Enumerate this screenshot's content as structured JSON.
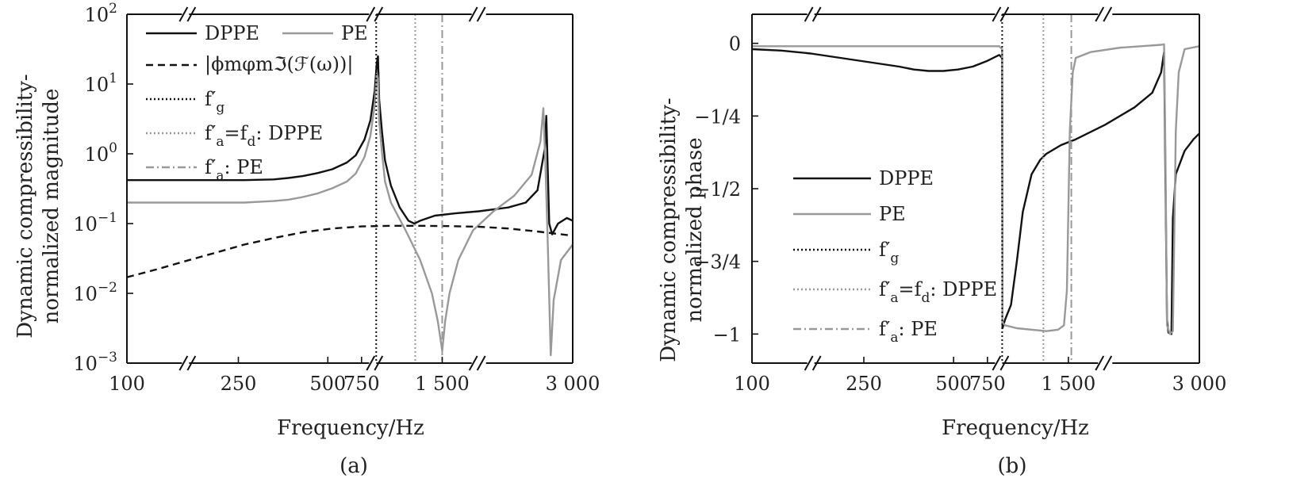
{
  "chart_data": [
    {
      "panel": "(a)",
      "type": "line",
      "xlabel": "Frequency/Hz",
      "ylabel_line1": "Dynamic compressibility-",
      "ylabel_line2": "normalized magnitude",
      "y_scale": "log",
      "ylim": [
        0.001,
        100
      ],
      "x_axis": "broken",
      "x_tick_labels": [
        "100",
        "250",
        "500",
        "750",
        "1 500",
        "3 000"
      ],
      "y_tick_labels": [
        {
          "base": "10",
          "exp": "2"
        },
        {
          "base": "10",
          "exp": "1"
        },
        {
          "base": "10",
          "exp": "0"
        },
        {
          "base": "10",
          "exp": "-1"
        },
        {
          "base": "10",
          "exp": "-2"
        },
        {
          "base": "10",
          "exp": "-3"
        }
      ],
      "legend": [
        {
          "label": "DPPE",
          "style": "solid-black"
        },
        {
          "label": "PE",
          "style": "solid-gray"
        },
        {
          "label": "|ϕmφmℑ(ℱ(ω))|",
          "style": "dashed-black"
        },
        {
          "label": "f′g",
          "style": "dotted-black"
        },
        {
          "label": "f′a = fd: DPPE",
          "style": "dotted-gray"
        },
        {
          "label": "f′a: PE",
          "style": "dashdot-gray"
        }
      ],
      "legend_text": {
        "dppe": "DPPE",
        "pe": "PE",
        "phi_abs": "|ϕmφmℑ(ℱ(ω))|",
        "fg_main": "f′",
        "fg_sub": "g",
        "fa_dppe_main": "f′",
        "fa_dppe_sub": "a",
        "fa_dppe_eq": "=",
        "fa_dppe_fd": "f",
        "fa_dppe_fd_sub": "d",
        "fa_dppe_rest": ": DPPE",
        "fa_pe_main": "f′",
        "fa_pe_sub": "a",
        "fa_pe_rest": ": PE"
      },
      "legend_position": "upper-left",
      "caption": "(a)",
      "series": [
        {
          "name": "DPPE",
          "color": "#111111",
          "style": "solid",
          "points": [
            [
              0,
              0.42
            ],
            [
              0.1,
              0.42
            ],
            [
              0.2,
              0.42
            ],
            [
              0.3,
              0.42
            ],
            [
              0.4,
              0.42
            ],
            [
              0.5,
              0.43
            ],
            [
              0.55,
              0.45
            ],
            [
              0.6,
              0.48
            ],
            [
              0.65,
              0.53
            ],
            [
              0.7,
              0.6
            ],
            [
              0.75,
              0.75
            ],
            [
              0.78,
              0.95
            ],
            [
              0.81,
              1.6
            ],
            [
              0.83,
              3
            ],
            [
              0.845,
              8
            ],
            [
              0.852,
              20
            ],
            [
              0.856,
              25
            ],
            [
              0.86,
              6
            ],
            [
              0.87,
              2
            ],
            [
              0.88,
              0.8
            ],
            [
              0.9,
              0.35
            ],
            [
              0.93,
              0.17
            ],
            [
              0.96,
              0.11
            ],
            [
              0.98,
              0.1
            ],
            [
              1.0,
              0.11
            ],
            [
              1.05,
              0.13
            ],
            [
              1.12,
              0.14
            ],
            [
              1.2,
              0.15
            ],
            [
              1.3,
              0.17
            ],
            [
              1.36,
              0.2
            ],
            [
              1.4,
              0.3
            ],
            [
              1.425,
              1.2
            ],
            [
              1.43,
              3.5
            ],
            [
              1.44,
              0.1
            ],
            [
              1.45,
              0.07
            ],
            [
              1.47,
              0.1
            ],
            [
              1.5,
              0.12
            ],
            [
              1.52,
              0.11
            ]
          ]
        },
        {
          "name": "PE",
          "color": "#999999",
          "style": "solid",
          "points": [
            [
              0,
              0.2
            ],
            [
              0.1,
              0.2
            ],
            [
              0.2,
              0.2
            ],
            [
              0.3,
              0.2
            ],
            [
              0.4,
              0.2
            ],
            [
              0.5,
              0.21
            ],
            [
              0.55,
              0.22
            ],
            [
              0.6,
              0.24
            ],
            [
              0.65,
              0.27
            ],
            [
              0.7,
              0.32
            ],
            [
              0.75,
              0.4
            ],
            [
              0.78,
              0.52
            ],
            [
              0.81,
              0.9
            ],
            [
              0.83,
              1.8
            ],
            [
              0.845,
              5
            ],
            [
              0.852,
              14
            ],
            [
              0.856,
              12
            ],
            [
              0.86,
              3
            ],
            [
              0.87,
              1
            ],
            [
              0.88,
              0.4
            ],
            [
              0.9,
              0.2
            ],
            [
              0.95,
              0.08
            ],
            [
              1.0,
              0.03
            ],
            [
              1.04,
              0.01
            ],
            [
              1.06,
              0.004
            ],
            [
              1.075,
              0.0015
            ],
            [
              1.085,
              0.004
            ],
            [
              1.1,
              0.01
            ],
            [
              1.13,
              0.03
            ],
            [
              1.18,
              0.08
            ],
            [
              1.25,
              0.15
            ],
            [
              1.32,
              0.25
            ],
            [
              1.38,
              0.5
            ],
            [
              1.41,
              1.5
            ],
            [
              1.42,
              4.5
            ],
            [
              1.428,
              0.5
            ],
            [
              1.435,
              0.05
            ],
            [
              1.445,
              0.0013
            ],
            [
              1.455,
              0.008
            ],
            [
              1.48,
              0.03
            ],
            [
              1.52,
              0.05
            ]
          ]
        },
        {
          "name": "|ϕmφmℑ(ℱ(ω))|",
          "color": "#111111",
          "style": "dashed",
          "points": [
            [
              0,
              0.017
            ],
            [
              0.1,
              0.022
            ],
            [
              0.2,
              0.029
            ],
            [
              0.3,
              0.038
            ],
            [
              0.4,
              0.05
            ],
            [
              0.5,
              0.062
            ],
            [
              0.6,
              0.075
            ],
            [
              0.7,
              0.085
            ],
            [
              0.8,
              0.091
            ],
            [
              0.9,
              0.093
            ],
            [
              1.0,
              0.093
            ],
            [
              1.1,
              0.092
            ],
            [
              1.2,
              0.09
            ],
            [
              1.3,
              0.085
            ],
            [
              1.4,
              0.077
            ],
            [
              1.52,
              0.067
            ]
          ]
        }
      ]
    },
    {
      "panel": "(b)",
      "type": "line",
      "xlabel": "Frequency/Hz",
      "ylabel_line1": "Dynamic compressibility-",
      "ylabel_line2": "normalized phase",
      "ylim": [
        -1.1,
        0.1
      ],
      "x_axis": "broken",
      "x_tick_labels": [
        "100",
        "250",
        "500",
        "750",
        "1 500",
        "3 000"
      ],
      "y_tick_labels": [
        "0",
        "−1/4",
        "−1/2",
        "−3/4",
        "−1"
      ],
      "y_tick_values": [
        0,
        -0.25,
        -0.5,
        -0.75,
        -1
      ],
      "legend": [
        {
          "label": "DPPE",
          "style": "solid-black"
        },
        {
          "label": "PE",
          "style": "solid-gray"
        },
        {
          "label": "f′g",
          "style": "dotted-black"
        },
        {
          "label": "f′a = fd: DPPE",
          "style": "dotted-gray"
        },
        {
          "label": "f′a: PE",
          "style": "dashdot-gray"
        }
      ],
      "legend_text": {
        "dppe": "DPPE",
        "pe": "PE",
        "fg_main": "f′",
        "fg_sub": "g",
        "fa_dppe_main": "f′",
        "fa_dppe_sub": "a",
        "fa_dppe_eq": "=",
        "fa_dppe_fd": "f",
        "fa_dppe_fd_sub": "d",
        "fa_dppe_rest": ": DPPE",
        "fa_pe_main": "f′",
        "fa_pe_sub": "a",
        "fa_pe_rest": ": PE"
      },
      "legend_position": "center-left",
      "caption": "(b)",
      "series": [
        {
          "name": "DPPE",
          "color": "#111111",
          "style": "solid",
          "points": [
            [
              0,
              -0.02
            ],
            [
              0.1,
              -0.025
            ],
            [
              0.2,
              -0.035
            ],
            [
              0.3,
              -0.05
            ],
            [
              0.4,
              -0.065
            ],
            [
              0.5,
              -0.08
            ],
            [
              0.55,
              -0.09
            ],
            [
              0.6,
              -0.095
            ],
            [
              0.65,
              -0.095
            ],
            [
              0.7,
              -0.09
            ],
            [
              0.75,
              -0.08
            ],
            [
              0.8,
              -0.06
            ],
            [
              0.84,
              -0.04
            ],
            [
              0.85,
              -0.05
            ],
            [
              0.851,
              -0.98
            ],
            [
              0.86,
              -0.95
            ],
            [
              0.88,
              -0.9
            ],
            [
              0.9,
              -0.75
            ],
            [
              0.92,
              -0.58
            ],
            [
              0.95,
              -0.45
            ],
            [
              0.98,
              -0.4
            ],
            [
              1.0,
              -0.38
            ],
            [
              1.05,
              -0.35
            ],
            [
              1.1,
              -0.33
            ],
            [
              1.2,
              -0.28
            ],
            [
              1.3,
              -0.22
            ],
            [
              1.36,
              -0.17
            ],
            [
              1.39,
              -0.1
            ],
            [
              1.4,
              -0.03
            ],
            [
              1.41,
              -0.95
            ],
            [
              1.415,
              -0.995
            ],
            [
              1.425,
              -1.0
            ],
            [
              1.43,
              -0.6
            ],
            [
              1.44,
              -0.45
            ],
            [
              1.47,
              -0.37
            ],
            [
              1.5,
              -0.33
            ],
            [
              1.52,
              -0.31
            ]
          ]
        },
        {
          "name": "PE",
          "color": "#999999",
          "style": "solid",
          "points": [
            [
              0,
              -0.01
            ],
            [
              0.2,
              -0.01
            ],
            [
              0.4,
              -0.01
            ],
            [
              0.6,
              -0.01
            ],
            [
              0.8,
              -0.01
            ],
            [
              0.84,
              -0.01
            ],
            [
              0.85,
              -0.02
            ],
            [
              0.851,
              -0.96
            ],
            [
              0.86,
              -0.97
            ],
            [
              0.9,
              -0.98
            ],
            [
              1.0,
              -0.99
            ],
            [
              1.04,
              -0.985
            ],
            [
              1.06,
              -0.97
            ],
            [
              1.07,
              -0.85
            ],
            [
              1.08,
              -0.3
            ],
            [
              1.09,
              -0.1
            ],
            [
              1.1,
              -0.05
            ],
            [
              1.15,
              -0.03
            ],
            [
              1.25,
              -0.015
            ],
            [
              1.35,
              -0.008
            ],
            [
              1.39,
              -0.005
            ],
            [
              1.4,
              -0.003
            ],
            [
              1.405,
              -0.4
            ],
            [
              1.41,
              -0.97
            ],
            [
              1.42,
              -1.0
            ],
            [
              1.43,
              -0.99
            ],
            [
              1.44,
              -0.3
            ],
            [
              1.45,
              -0.1
            ],
            [
              1.47,
              -0.02
            ],
            [
              1.52,
              -0.01
            ]
          ]
        }
      ]
    }
  ]
}
